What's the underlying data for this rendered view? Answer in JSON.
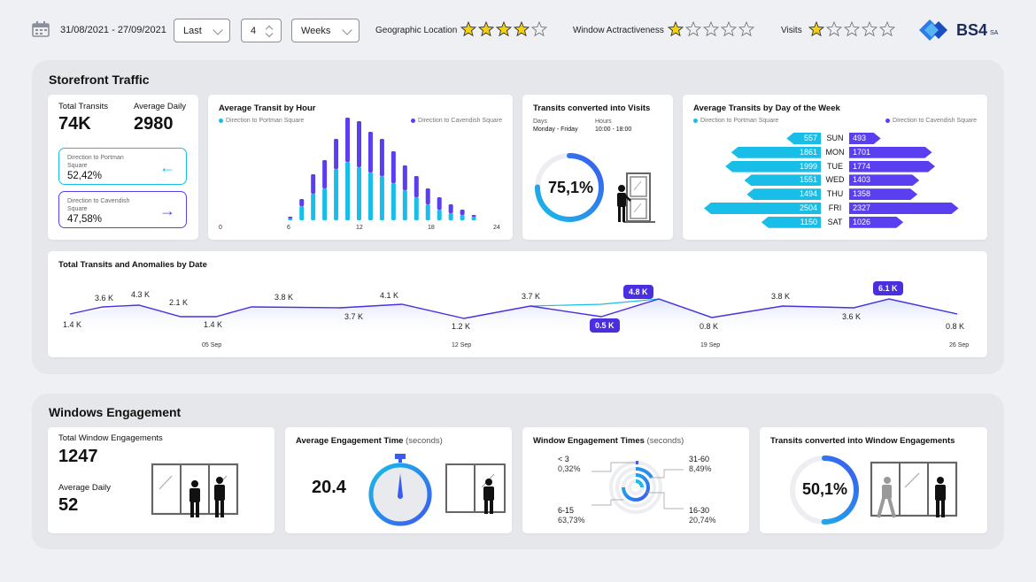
{
  "filters": {
    "date_range": "31/08/2021 - 27/09/2021",
    "period_select": "Last",
    "count_value": "4",
    "unit_select": "Weeks"
  },
  "ratings": [
    {
      "label": "Geographic Location",
      "value": 4,
      "max": 5
    },
    {
      "label": "Window Actractiveness",
      "value": 1,
      "max": 5
    },
    {
      "label": "Visits",
      "value": 1,
      "max": 5
    }
  ],
  "logo": {
    "text": "BS4",
    "suffix": "SA"
  },
  "colors": {
    "cyan": "#18bde8",
    "purple": "#5a3ff0",
    "star": "#f5d10c"
  },
  "storefront": {
    "title": "Storefront Traffic",
    "totals": {
      "total_label": "Total Transits",
      "total_value": "74K",
      "avg_label": "Average Daily",
      "avg_value": "2980",
      "portman_label": "Direction to Portman Square",
      "portman_value": "52,42%",
      "cavendish_label": "Direction to Cavendish Square",
      "cavendish_value": "47,58%"
    },
    "hourly": {
      "title": "Average Transit by Hour",
      "legend_left": "Direction to Portman Square",
      "legend_right": "Direction to Cavendish Square",
      "ticks": [
        "0",
        "6",
        "12",
        "18",
        "24"
      ]
    },
    "converted": {
      "title": "Transits converted into Visits",
      "days_label": "Days",
      "days_value": "Monday - Friday",
      "hours_label": "Hours",
      "hours_value": "10:00 - 18:00",
      "percent_text": "75,1%",
      "percent": 75.1
    },
    "weekday": {
      "title": "Average Transits by Day of the Week",
      "legend_left": "Direction to Portman Square",
      "legend_right": "Direction to Cavendish Square",
      "days": [
        {
          "name": "SUN",
          "left": 557,
          "right": 493
        },
        {
          "name": "MON",
          "left": 1861,
          "right": 1701
        },
        {
          "name": "TUE",
          "left": 1999,
          "right": 1774
        },
        {
          "name": "WED",
          "left": 1551,
          "right": 1403
        },
        {
          "name": "THU",
          "left": 1494,
          "right": 1358
        },
        {
          "name": "FRI",
          "left": 2504,
          "right": 2327
        },
        {
          "name": "SAT",
          "left": 1150,
          "right": 1026
        }
      ]
    },
    "anomalies": {
      "title": "Total Transits and Anomalies by Date",
      "points": [
        "1.4 K",
        "3.6 K",
        "4.3 K",
        "2.1 K",
        "1.4 K",
        "3.8 K",
        "3.7 K",
        "4.1 K",
        "1.2 K",
        "3.7 K",
        "0.5 K",
        "4.8 K",
        "0.8 K",
        "3.8 K",
        "3.6 K",
        "6.1 K",
        "0.8 K"
      ],
      "dates": [
        "05 Sep",
        "12 Sep",
        "19 Sep",
        "26 Sep"
      ]
    }
  },
  "windows": {
    "title": "Windows Engagement",
    "total": {
      "label": "Total Window Engagements",
      "value": "1247",
      "avg_label": "Average Daily",
      "avg_value": "52"
    },
    "avg_time": {
      "title": "Average Engagement Time",
      "unit": "(seconds)",
      "value": "20.4"
    },
    "times": {
      "title": "Window Engagement Times",
      "unit": "(seconds)",
      "segments": [
        {
          "range": "< 3",
          "pct": "0,32%"
        },
        {
          "range": "31-60",
          "pct": "8,49%"
        },
        {
          "range": "6-15",
          "pct": "63,73%"
        },
        {
          "range": "16-30",
          "pct": "20,74%"
        }
      ]
    },
    "converted": {
      "title": "Transits converted into Window Engagements",
      "percent_text": "50,1%",
      "percent": 50.1
    }
  }
}
